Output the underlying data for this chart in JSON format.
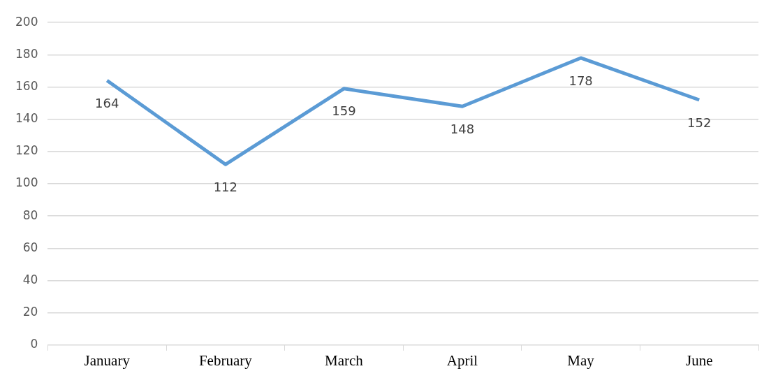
{
  "chart_data": {
    "type": "line",
    "categories": [
      "January",
      "February",
      "March",
      "April",
      "May",
      "June"
    ],
    "series": [
      {
        "color": "#5b9bd5",
        "values": [
          164,
          112,
          159,
          148,
          178,
          152
        ]
      }
    ],
    "ylim": [
      0,
      200
    ],
    "yticks": [
      0,
      20,
      40,
      60,
      80,
      100,
      120,
      140,
      160,
      180,
      200
    ],
    "grid": "y",
    "data_labels": true,
    "legend": false,
    "marker": "none"
  }
}
